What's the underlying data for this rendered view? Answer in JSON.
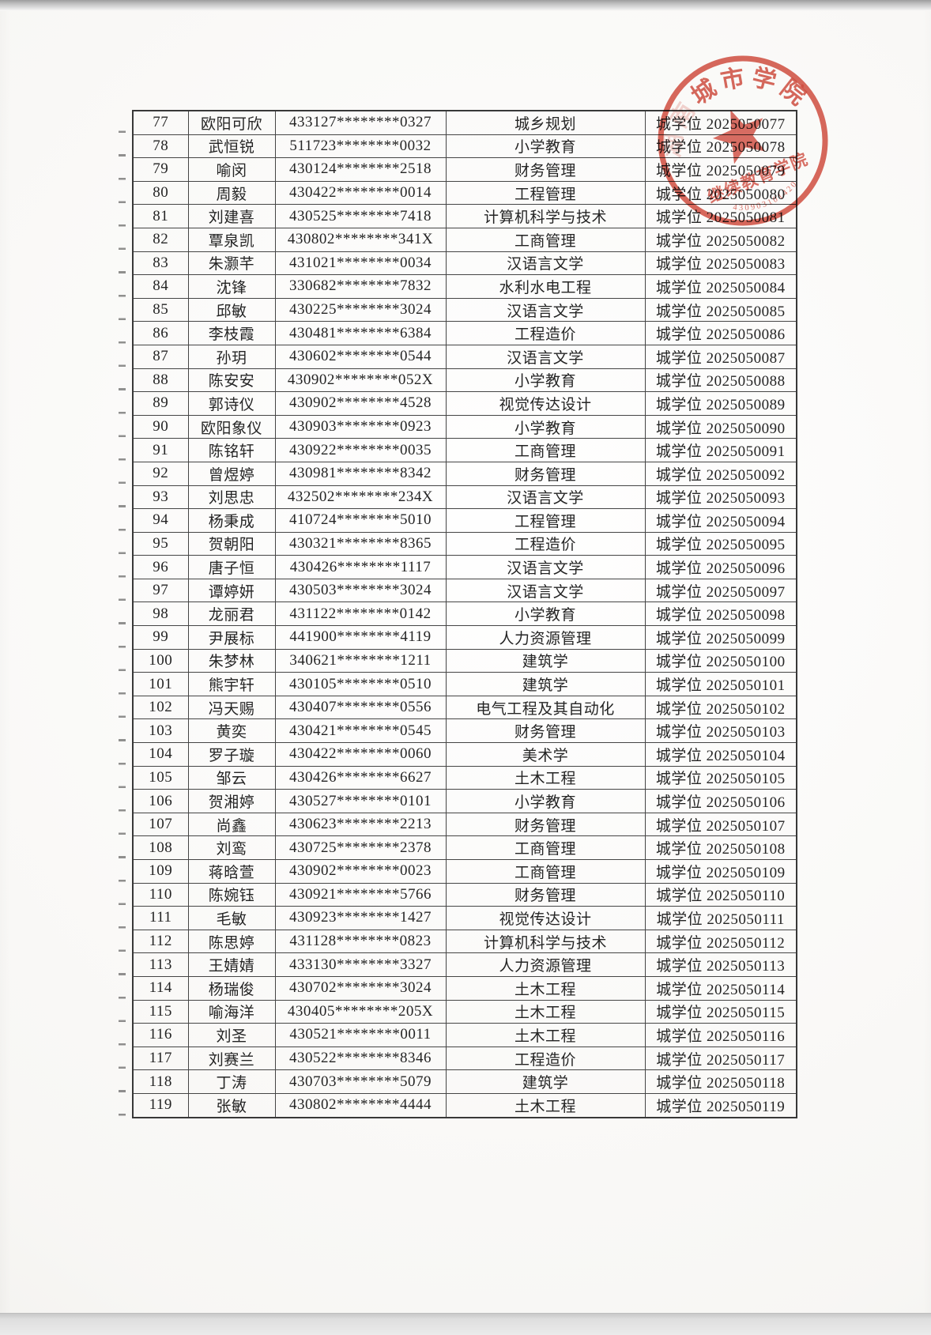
{
  "document": {
    "kind": "scanned degree roster page",
    "page_background": "#fbfaf8",
    "ink_color": "#242424"
  },
  "stamp": {
    "color": "#cc3526",
    "arc_text_faint": "湖南",
    "arc_text_main": "城市学院",
    "sub_text": "继续教育学院",
    "serial": "430903101420"
  },
  "table": {
    "cert_prefix": "城学位",
    "rows": [
      {
        "no": "77",
        "name": "欧阳可欣",
        "id": "433127********0327",
        "major": "城乡规划",
        "cert": "城学位 2025050077"
      },
      {
        "no": "78",
        "name": "武恒锐",
        "id": "511723********0032",
        "major": "小学教育",
        "cert": "城学位 2025050078"
      },
      {
        "no": "79",
        "name": "喻闵",
        "id": "430124********2518",
        "major": "财务管理",
        "cert": "城学位 2025050079"
      },
      {
        "no": "80",
        "name": "周毅",
        "id": "430422********0014",
        "major": "工程管理",
        "cert": "城学位 2025050080"
      },
      {
        "no": "81",
        "name": "刘建喜",
        "id": "430525********7418",
        "major": "计算机科学与技术",
        "cert": "城学位 2025050081"
      },
      {
        "no": "82",
        "name": "覃泉凯",
        "id": "430802********341X",
        "major": "工商管理",
        "cert": "城学位 2025050082"
      },
      {
        "no": "83",
        "name": "朱灏芊",
        "id": "431021********0034",
        "major": "汉语言文学",
        "cert": "城学位 2025050083"
      },
      {
        "no": "84",
        "name": "沈锋",
        "id": "330682********7832",
        "major": "水利水电工程",
        "cert": "城学位 2025050084"
      },
      {
        "no": "85",
        "name": "邱敏",
        "id": "430225********3024",
        "major": "汉语言文学",
        "cert": "城学位 2025050085"
      },
      {
        "no": "86",
        "name": "李枝霞",
        "id": "430481********6384",
        "major": "工程造价",
        "cert": "城学位 2025050086"
      },
      {
        "no": "87",
        "name": "孙玥",
        "id": "430602********0544",
        "major": "汉语言文学",
        "cert": "城学位 2025050087"
      },
      {
        "no": "88",
        "name": "陈安安",
        "id": "430902********052X",
        "major": "小学教育",
        "cert": "城学位 2025050088"
      },
      {
        "no": "89",
        "name": "郭诗仪",
        "id": "430902********4528",
        "major": "视觉传达设计",
        "cert": "城学位 2025050089"
      },
      {
        "no": "90",
        "name": "欧阳象仪",
        "id": "430903********0923",
        "major": "小学教育",
        "cert": "城学位 2025050090"
      },
      {
        "no": "91",
        "name": "陈铭轩",
        "id": "430922********0035",
        "major": "工商管理",
        "cert": "城学位 2025050091"
      },
      {
        "no": "92",
        "name": "曾煜婷",
        "id": "430981********8342",
        "major": "财务管理",
        "cert": "城学位 2025050092"
      },
      {
        "no": "93",
        "name": "刘思忠",
        "id": "432502********234X",
        "major": "汉语言文学",
        "cert": "城学位 2025050093"
      },
      {
        "no": "94",
        "name": "杨秉成",
        "id": "410724********5010",
        "major": "工程管理",
        "cert": "城学位 2025050094"
      },
      {
        "no": "95",
        "name": "贺朝阳",
        "id": "430321********8365",
        "major": "工程造价",
        "cert": "城学位 2025050095"
      },
      {
        "no": "96",
        "name": "唐子恒",
        "id": "430426********1117",
        "major": "汉语言文学",
        "cert": "城学位 2025050096"
      },
      {
        "no": "97",
        "name": "谭婷妍",
        "id": "430503********3024",
        "major": "汉语言文学",
        "cert": "城学位 2025050097"
      },
      {
        "no": "98",
        "name": "龙丽君",
        "id": "431122********0142",
        "major": "小学教育",
        "cert": "城学位 2025050098"
      },
      {
        "no": "99",
        "name": "尹展标",
        "id": "441900********4119",
        "major": "人力资源管理",
        "cert": "城学位 2025050099"
      },
      {
        "no": "100",
        "name": "朱梦林",
        "id": "340621********1211",
        "major": "建筑学",
        "cert": "城学位 2025050100"
      },
      {
        "no": "101",
        "name": "熊宇轩",
        "id": "430105********0510",
        "major": "建筑学",
        "cert": "城学位 2025050101"
      },
      {
        "no": "102",
        "name": "冯天赐",
        "id": "430407********0556",
        "major": "电气工程及其自动化",
        "cert": "城学位 2025050102"
      },
      {
        "no": "103",
        "name": "黄奕",
        "id": "430421********0545",
        "major": "财务管理",
        "cert": "城学位 2025050103"
      },
      {
        "no": "104",
        "name": "罗子璇",
        "id": "430422********0060",
        "major": "美术学",
        "cert": "城学位 2025050104"
      },
      {
        "no": "105",
        "name": "邹云",
        "id": "430426********6627",
        "major": "土木工程",
        "cert": "城学位 2025050105"
      },
      {
        "no": "106",
        "name": "贺湘婷",
        "id": "430527********0101",
        "major": "小学教育",
        "cert": "城学位 2025050106"
      },
      {
        "no": "107",
        "name": "尚鑫",
        "id": "430623********2213",
        "major": "财务管理",
        "cert": "城学位 2025050107"
      },
      {
        "no": "108",
        "name": "刘鸾",
        "id": "430725********2378",
        "major": "工商管理",
        "cert": "城学位 2025050108"
      },
      {
        "no": "109",
        "name": "蒋晗萱",
        "id": "430902********0023",
        "major": "工商管理",
        "cert": "城学位 2025050109"
      },
      {
        "no": "110",
        "name": "陈婉钰",
        "id": "430921********5766",
        "major": "财务管理",
        "cert": "城学位 2025050110"
      },
      {
        "no": "111",
        "name": "毛敏",
        "id": "430923********1427",
        "major": "视觉传达设计",
        "cert": "城学位 2025050111"
      },
      {
        "no": "112",
        "name": "陈思婷",
        "id": "431128********0823",
        "major": "计算机科学与技术",
        "cert": "城学位 2025050112"
      },
      {
        "no": "113",
        "name": "王婧婧",
        "id": "433130********3327",
        "major": "人力资源管理",
        "cert": "城学位 2025050113"
      },
      {
        "no": "114",
        "name": "杨瑞俊",
        "id": "430702********3024",
        "major": "土木工程",
        "cert": "城学位 2025050114"
      },
      {
        "no": "115",
        "name": "喻海洋",
        "id": "430405********205X",
        "major": "土木工程",
        "cert": "城学位 2025050115"
      },
      {
        "no": "116",
        "name": "刘圣",
        "id": "430521********0011",
        "major": "土木工程",
        "cert": "城学位 2025050116"
      },
      {
        "no": "117",
        "name": "刘赛兰",
        "id": "430522********8346",
        "major": "工程造价",
        "cert": "城学位 2025050117"
      },
      {
        "no": "118",
        "name": "丁涛",
        "id": "430703********5079",
        "major": "建筑学",
        "cert": "城学位 2025050118"
      },
      {
        "no": "119",
        "name": "张敏",
        "id": "430802********4444",
        "major": "土木工程",
        "cert": "城学位 2025050119"
      }
    ]
  }
}
